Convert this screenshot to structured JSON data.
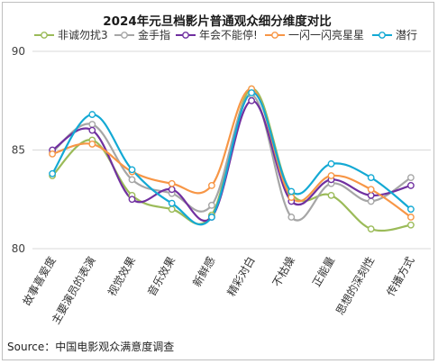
{
  "chart_data": {
    "type": "line",
    "title": "2024年元旦档影片普通观众细分维度对比",
    "source": "Source：中国电影观众满意度调查",
    "ylim": [
      80,
      90
    ],
    "yticks": [
      80,
      85,
      90
    ],
    "grid": "horizontal",
    "legend_position": "top",
    "categories": [
      "故事喜爱度",
      "主要演员的表演",
      "视觉效果",
      "音乐效果",
      "新鲜感",
      "精彩对白",
      "不枯燥",
      "正能量",
      "思想的深刻性",
      "传播方式"
    ],
    "series": [
      {
        "name": "非诚勿扰3",
        "color": "#9bbb59",
        "values": [
          83.7,
          85.5,
          82.7,
          82.0,
          81.7,
          88.1,
          82.8,
          82.7,
          81.0,
          81.2
        ]
      },
      {
        "name": "金手指",
        "color": "#a6a6a6",
        "values": [
          84.9,
          86.3,
          83.5,
          82.8,
          82.2,
          87.8,
          81.6,
          83.3,
          82.4,
          83.6
        ]
      },
      {
        "name": "年会不能停!",
        "color": "#7030a0",
        "values": [
          85.0,
          86.0,
          82.5,
          83.0,
          81.6,
          87.5,
          82.4,
          83.5,
          82.7,
          83.2
        ]
      },
      {
        "name": "一闪一闪亮星星",
        "color": "#f79646",
        "values": [
          84.8,
          85.3,
          83.9,
          83.3,
          83.2,
          88.1,
          82.6,
          83.7,
          83.0,
          81.6
        ]
      },
      {
        "name": "潜行",
        "color": "#13a9d4",
        "values": [
          83.8,
          86.8,
          84.0,
          82.3,
          81.6,
          87.9,
          82.9,
          84.3,
          83.6,
          82.0
        ]
      }
    ]
  }
}
